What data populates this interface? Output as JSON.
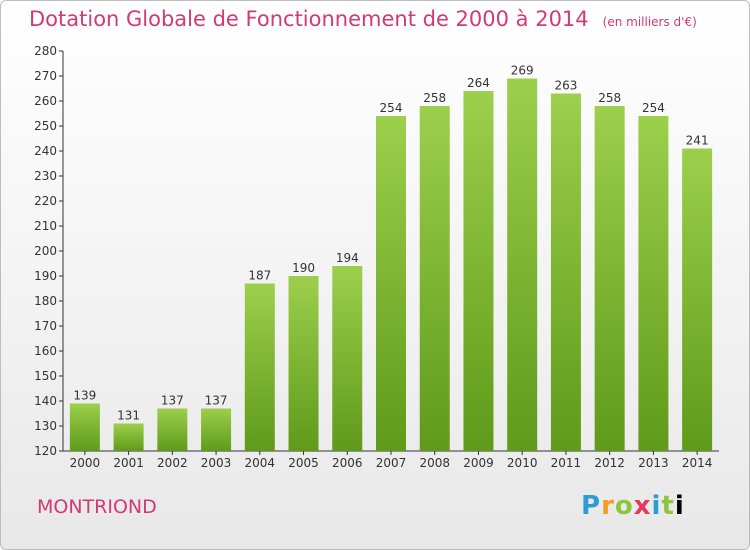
{
  "title": "Dotation Globale de Fonctionnement de 2000 à 2014",
  "unit": "(en milliers d'€)",
  "commune": "MONTRIOND",
  "logo_text": "Proxiti",
  "colors": {
    "title": "#d03a75",
    "bar_light": "#9ccf4c",
    "bar_dark": "#5f9a1a",
    "axis": "#333333"
  },
  "chart_data": {
    "type": "bar",
    "title": "Dotation Globale de Fonctionnement de 2000 à 2014",
    "subtitle": "(en milliers d'€)",
    "categories": [
      "2000",
      "2001",
      "2002",
      "2003",
      "2004",
      "2005",
      "2006",
      "2007",
      "2008",
      "2009",
      "2010",
      "2011",
      "2012",
      "2013",
      "2014"
    ],
    "values": [
      139,
      131,
      137,
      137,
      187,
      190,
      194,
      254,
      258,
      264,
      269,
      263,
      258,
      254,
      241
    ],
    "ylim": [
      120,
      280
    ],
    "yticks": [
      120,
      130,
      140,
      150,
      160,
      170,
      180,
      190,
      200,
      210,
      220,
      230,
      240,
      250,
      260,
      270,
      280
    ],
    "grid": false,
    "legend": "none",
    "show_value_labels": true
  }
}
